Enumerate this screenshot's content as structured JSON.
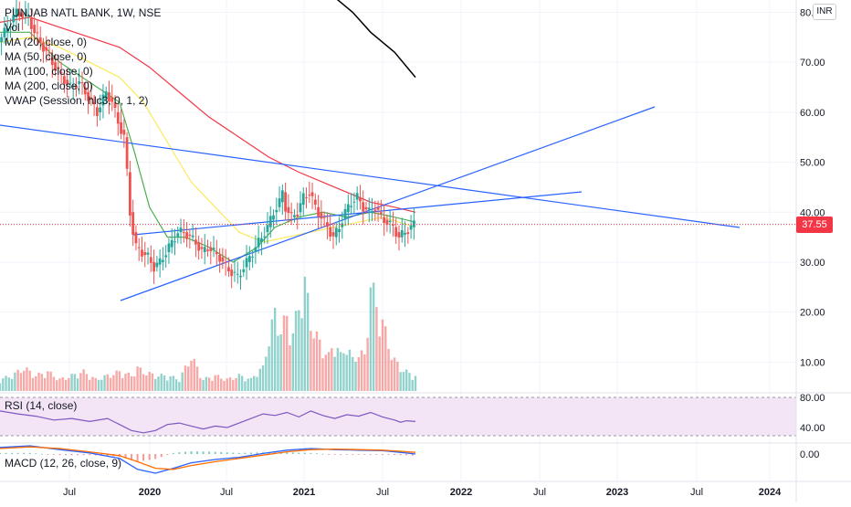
{
  "header": {
    "symbol_line": "PUNJAB NATL BANK, 1W, NSE",
    "currency": "INR"
  },
  "legend": [
    "Vol",
    "MA (20, close, 0)",
    "MA (50, close, 0)",
    "MA (100, close, 0)",
    "MA (200, close, 0)",
    "VWAP (Session, hlc3, 0, 1, 2)"
  ],
  "rsi_label": "RSI (14, close)",
  "macd_label": "MACD (12, 26, close, 9)",
  "last_price": "37.55",
  "colors": {
    "up": "#26a69a",
    "down": "#ef5350",
    "ma20": "#4caf50",
    "ma50": "#fbe95e",
    "ma100": "#f23645",
    "trend": "#2962ff",
    "rsi": "#7e57c2",
    "rsi_band": "#f3e5f5",
    "macd": "#2962ff",
    "signal": "#ff6d00"
  },
  "chart_data": {
    "type": "candlestick",
    "price_axis": {
      "range": [
        8,
        82
      ],
      "ticks": [
        "80.00",
        "70.00",
        "60.00",
        "50.00",
        "40.00",
        "30.00",
        "20.00",
        "10.00"
      ]
    },
    "rsi_axis": {
      "ticks": [
        "80.00",
        "40.00"
      ]
    },
    "macd_axis": {
      "ticks": [
        "0.00"
      ]
    },
    "time_axis": {
      "labels": [
        "Jul",
        "2020",
        "Jul",
        "2021",
        "Jul",
        "2022",
        "Jul",
        "2023",
        "Jul",
        "2024"
      ]
    },
    "last_price": 37.55,
    "weekly_close_path": [
      [
        0,
        74
      ],
      [
        6,
        80
      ],
      [
        10,
        79
      ],
      [
        12,
        76
      ],
      [
        16,
        72
      ],
      [
        20,
        68
      ],
      [
        24,
        65
      ],
      [
        27,
        66
      ],
      [
        30,
        63
      ],
      [
        33,
        60
      ],
      [
        36,
        64
      ],
      [
        38,
        62
      ],
      [
        40,
        58
      ],
      [
        42,
        55
      ],
      [
        43,
        48
      ],
      [
        44,
        40
      ],
      [
        45,
        36
      ],
      [
        46,
        33
      ],
      [
        48,
        32
      ],
      [
        50,
        31
      ],
      [
        52,
        29
      ],
      [
        54,
        30
      ],
      [
        56,
        32
      ],
      [
        58,
        34
      ],
      [
        60,
        36
      ],
      [
        62,
        36
      ],
      [
        64,
        35
      ],
      [
        66,
        34
      ],
      [
        68,
        32
      ],
      [
        70,
        33
      ],
      [
        72,
        32
      ],
      [
        74,
        31
      ],
      [
        76,
        29
      ],
      [
        78,
        28
      ],
      [
        80,
        27
      ],
      [
        82,
        29
      ],
      [
        84,
        31
      ],
      [
        86,
        33
      ],
      [
        88,
        35
      ],
      [
        90,
        37
      ],
      [
        92,
        40
      ],
      [
        94,
        42
      ],
      [
        95,
        44
      ],
      [
        96,
        41
      ],
      [
        98,
        39
      ],
      [
        100,
        40
      ],
      [
        102,
        43
      ],
      [
        104,
        44
      ],
      [
        106,
        41
      ],
      [
        108,
        39
      ],
      [
        110,
        37
      ],
      [
        112,
        35
      ],
      [
        114,
        37
      ],
      [
        116,
        40
      ],
      [
        118,
        42
      ],
      [
        120,
        43
      ],
      [
        122,
        41
      ],
      [
        124,
        40
      ],
      [
        126,
        41
      ],
      [
        128,
        39
      ],
      [
        130,
        38
      ],
      [
        132,
        37
      ],
      [
        134,
        35
      ],
      [
        136,
        36
      ],
      [
        138,
        37
      ],
      [
        139,
        37.55
      ]
    ],
    "overlays": [
      {
        "name": "MA (20, close, 0)",
        "values": [
          [
            0,
            76
          ],
          [
            10,
            76
          ],
          [
            20,
            70
          ],
          [
            30,
            66
          ],
          [
            40,
            62
          ],
          [
            45,
            52
          ],
          [
            50,
            41
          ],
          [
            56,
            35
          ],
          [
            62,
            35
          ],
          [
            70,
            33
          ],
          [
            78,
            30
          ],
          [
            86,
            33
          ],
          [
            92,
            37
          ],
          [
            100,
            39
          ],
          [
            108,
            40
          ],
          [
            116,
            39
          ],
          [
            124,
            40
          ],
          [
            132,
            39
          ],
          [
            139,
            38
          ]
        ]
      },
      {
        "name": "MA (50, close, 0)",
        "values": [
          [
            0,
            74
          ],
          [
            10,
            75
          ],
          [
            20,
            73
          ],
          [
            30,
            70
          ],
          [
            40,
            67
          ],
          [
            48,
            62
          ],
          [
            56,
            54
          ],
          [
            64,
            46
          ],
          [
            72,
            41
          ],
          [
            80,
            36
          ],
          [
            88,
            34
          ],
          [
            96,
            35
          ],
          [
            104,
            36
          ],
          [
            112,
            37
          ],
          [
            120,
            38
          ],
          [
            128,
            39
          ],
          [
            139,
            37
          ]
        ]
      },
      {
        "name": "MA (100, close, 0)",
        "values": [
          [
            0,
            78
          ],
          [
            10,
            79
          ],
          [
            20,
            77
          ],
          [
            30,
            75
          ],
          [
            40,
            73
          ],
          [
            50,
            69
          ],
          [
            60,
            64
          ],
          [
            70,
            59
          ],
          [
            80,
            55
          ],
          [
            90,
            51
          ],
          [
            100,
            48
          ],
          [
            108,
            46
          ],
          [
            116,
            44
          ],
          [
            124,
            42
          ],
          [
            132,
            41
          ],
          [
            139,
            40
          ]
        ]
      },
      {
        "name": "MA (200, close, 0)",
        "values": [
          [
            112,
            83
          ],
          [
            118,
            80
          ],
          [
            124,
            76
          ],
          [
            132,
            72
          ],
          [
            139,
            67
          ]
        ]
      }
    ],
    "volume": [
      [
        0,
        3
      ],
      [
        4,
        4
      ],
      [
        8,
        6
      ],
      [
        12,
        4
      ],
      [
        16,
        5
      ],
      [
        20,
        3
      ],
      [
        24,
        4
      ],
      [
        28,
        5
      ],
      [
        32,
        3
      ],
      [
        36,
        4
      ],
      [
        40,
        5
      ],
      [
        44,
        4
      ],
      [
        46,
        6
      ],
      [
        48,
        5
      ],
      [
        52,
        4
      ],
      [
        56,
        4
      ],
      [
        60,
        3
      ],
      [
        62,
        6
      ],
      [
        64,
        9
      ],
      [
        66,
        6
      ],
      [
        68,
        3
      ],
      [
        72,
        4
      ],
      [
        76,
        3
      ],
      [
        80,
        4
      ],
      [
        84,
        3
      ],
      [
        86,
        5
      ],
      [
        88,
        6
      ],
      [
        90,
        14
      ],
      [
        92,
        20
      ],
      [
        94,
        16
      ],
      [
        96,
        19
      ],
      [
        98,
        15
      ],
      [
        100,
        22
      ],
      [
        102,
        28
      ],
      [
        104,
        18
      ],
      [
        106,
        14
      ],
      [
        108,
        11
      ],
      [
        110,
        9
      ],
      [
        112,
        13
      ],
      [
        114,
        9
      ],
      [
        116,
        12
      ],
      [
        118,
        8
      ],
      [
        120,
        10
      ],
      [
        122,
        9
      ],
      [
        124,
        28
      ],
      [
        126,
        22
      ],
      [
        128,
        18
      ],
      [
        130,
        12
      ],
      [
        132,
        8
      ],
      [
        134,
        6
      ],
      [
        136,
        5
      ],
      [
        138,
        4
      ]
    ],
    "rsi": [
      [
        0,
        62
      ],
      [
        6,
        58
      ],
      [
        12,
        55
      ],
      [
        18,
        50
      ],
      [
        24,
        52
      ],
      [
        30,
        48
      ],
      [
        36,
        52
      ],
      [
        40,
        44
      ],
      [
        44,
        36
      ],
      [
        48,
        33
      ],
      [
        52,
        36
      ],
      [
        56,
        44
      ],
      [
        60,
        46
      ],
      [
        64,
        42
      ],
      [
        68,
        38
      ],
      [
        72,
        42
      ],
      [
        76,
        40
      ],
      [
        80,
        46
      ],
      [
        84,
        52
      ],
      [
        88,
        58
      ],
      [
        92,
        56
      ],
      [
        96,
        60
      ],
      [
        100,
        54
      ],
      [
        104,
        62
      ],
      [
        108,
        56
      ],
      [
        112,
        52
      ],
      [
        116,
        57
      ],
      [
        120,
        55
      ],
      [
        124,
        60
      ],
      [
        128,
        54
      ],
      [
        132,
        50
      ],
      [
        134,
        47
      ],
      [
        136,
        49
      ],
      [
        139,
        48
      ]
    ],
    "macd": [
      [
        0,
        1.2
      ],
      [
        10,
        1.5
      ],
      [
        20,
        0.8
      ],
      [
        30,
        0.2
      ],
      [
        40,
        -0.8
      ],
      [
        46,
        -2.8
      ],
      [
        52,
        -3.5
      ],
      [
        58,
        -2.6
      ],
      [
        64,
        -1.6
      ],
      [
        72,
        -1.0
      ],
      [
        80,
        -0.6
      ],
      [
        88,
        0.1
      ],
      [
        96,
        0.7
      ],
      [
        104,
        1.0
      ],
      [
        112,
        0.8
      ],
      [
        120,
        0.7
      ],
      [
        128,
        0.6
      ],
      [
        134,
        0.3
      ],
      [
        139,
        0.0
      ]
    ],
    "signal": [
      [
        0,
        1.0
      ],
      [
        10,
        1.3
      ],
      [
        20,
        1.0
      ],
      [
        30,
        0.4
      ],
      [
        40,
        -0.3
      ],
      [
        46,
        -1.4
      ],
      [
        52,
        -2.6
      ],
      [
        58,
        -2.8
      ],
      [
        64,
        -2.1
      ],
      [
        72,
        -1.4
      ],
      [
        80,
        -0.8
      ],
      [
        88,
        -0.2
      ],
      [
        96,
        0.4
      ],
      [
        104,
        0.8
      ],
      [
        112,
        0.9
      ],
      [
        120,
        0.8
      ],
      [
        128,
        0.7
      ],
      [
        134,
        0.5
      ],
      [
        139,
        0.3
      ]
    ]
  }
}
